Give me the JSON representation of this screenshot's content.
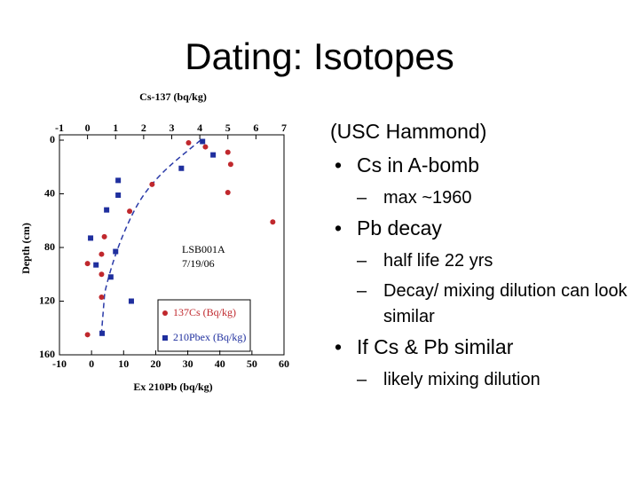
{
  "slide": {
    "title": "Dating: Isotopes",
    "items": [
      {
        "text": "(USC Hammond)",
        "level": 0,
        "bullet": false
      },
      {
        "text": "Cs in A-bomb",
        "level": 1,
        "bullet": true
      },
      {
        "text": "max ~1960",
        "level": 2,
        "bullet": true
      },
      {
        "text": "Pb decay",
        "level": 1,
        "bullet": true
      },
      {
        "text": "half life 22 yrs",
        "level": 2,
        "bullet": true
      },
      {
        "text": "Decay/ mixing dilution can look similar",
        "level": 2,
        "bullet": true
      },
      {
        "text": "If Cs & Pb similar",
        "level": 1,
        "bullet": true
      },
      {
        "text": "likely mixing dilution",
        "level": 2,
        "bullet": true
      }
    ]
  },
  "chart_data": {
    "type": "scatter",
    "x_label": "Cs-137 (bq/kg)",
    "x2_label": "Ex 210Pb (bq/kg)",
    "y_label": "Depth (cm)",
    "xlim": [
      -1,
      7
    ],
    "xticks": [
      -1,
      0,
      1,
      2,
      3,
      4,
      5,
      6,
      7
    ],
    "x2lim": [
      -10,
      60
    ],
    "x2ticks": [
      -10,
      0,
      10,
      20,
      30,
      40,
      50,
      60
    ],
    "ylim": [
      160,
      0
    ],
    "yticks": [
      0,
      40,
      80,
      120,
      160
    ],
    "annotation_lines": [
      "LSB001A",
      "7/19/06"
    ],
    "legend": "lower right",
    "series": [
      {
        "name": "137Cs (Bq/kg)",
        "color": "#c0282d",
        "axis": "x",
        "x": [
          3.6,
          4.2,
          5.0,
          5.1,
          2.3,
          5.0,
          1.5,
          6.6,
          0.6,
          0.5,
          0.0,
          0.5,
          0.5,
          0.0
        ],
        "y": [
          2,
          5,
          9,
          18,
          33,
          39,
          53,
          61,
          72,
          85,
          92,
          100,
          117,
          145
        ]
      },
      {
        "name": "210Pbex (Bq/kg)",
        "color": "#1f2f9e",
        "axis": "x2",
        "x": [
          34.6,
          37.9,
          28,
          8.3,
          8.3,
          4.7,
          -0.3,
          7.5,
          1.4,
          6,
          12.4,
          3.3
        ],
        "y": [
          1,
          11,
          21,
          30,
          41,
          52,
          73,
          83,
          93,
          102,
          120,
          144
        ]
      }
    ]
  }
}
